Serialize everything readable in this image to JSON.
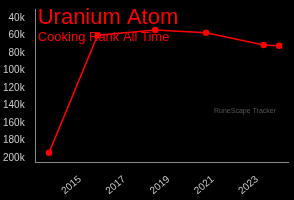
{
  "chart_data": {
    "type": "line",
    "title": "Uranium Atom",
    "subtitle": "Cooking Rank All Time",
    "annotations": [
      "RuneScape Tracker"
    ],
    "x": [
      2013.6,
      2015.8,
      2018.4,
      2020.7,
      2023.3,
      2024.0
    ],
    "values": [
      194000,
      60000,
      54000,
      57000,
      71000,
      72000
    ],
    "color": "#ff0000",
    "marker": "circle",
    "grid": false,
    "xlim": [
      2013,
      2024.4
    ],
    "xticks": [
      2015,
      2017,
      2019,
      2021,
      2023
    ],
    "ylim": [
      30000,
      205000
    ],
    "yticks": [
      {
        "value": 40000,
        "label": "40k"
      },
      {
        "value": 60000,
        "label": "60k"
      },
      {
        "value": 80000,
        "label": "80k"
      },
      {
        "value": 100000,
        "label": "100k"
      },
      {
        "value": 120000,
        "label": "120k"
      },
      {
        "value": 140000,
        "label": "140k"
      },
      {
        "value": 160000,
        "label": "160k"
      },
      {
        "value": 180000,
        "label": "180k"
      },
      {
        "value": 200000,
        "label": "200k"
      }
    ]
  }
}
